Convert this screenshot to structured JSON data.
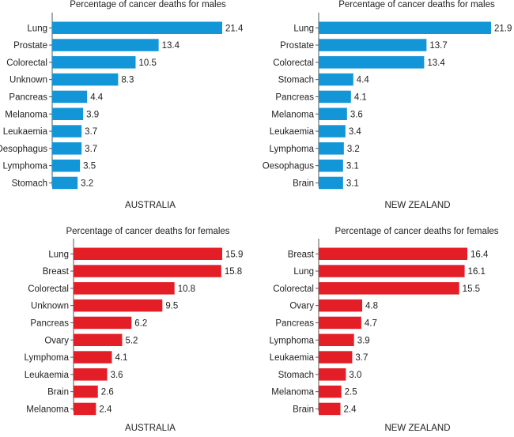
{
  "chart_data": [
    {
      "type": "bar",
      "orientation": "horizontal",
      "title": "Percentage of cancer deaths for males",
      "xlabel": "AUSTRALIA",
      "color": "#1396d8",
      "categories": [
        "Lung",
        "Prostate",
        "Colorectal",
        "Unknown",
        "Pancreas",
        "Melanoma",
        "Leukaemia",
        "Oesophagus",
        "Lymphoma",
        "Stomach"
      ],
      "values": [
        21.4,
        13.4,
        10.5,
        8.3,
        4.4,
        3.9,
        3.7,
        3.7,
        3.5,
        3.2
      ],
      "labels": [
        "21.4",
        "13.4",
        "10.5",
        "8.3",
        "4.4",
        "3.9",
        "3.7",
        "3.7",
        "3.5",
        "3.2"
      ],
      "xlim": [
        0,
        22
      ]
    },
    {
      "type": "bar",
      "orientation": "horizontal",
      "title": "Percentage of cancer deaths for males",
      "xlabel": "NEW ZEALAND",
      "color": "#1396d8",
      "categories": [
        "Lung",
        "Prostate",
        "Colorectal",
        "Stomach",
        "Pancreas",
        "Melanoma",
        "Leukaemia",
        "Lymphoma",
        "Oesophagus",
        "Brain"
      ],
      "values": [
        21.9,
        13.7,
        13.4,
        4.4,
        4.1,
        3.6,
        3.4,
        3.2,
        3.1,
        3.1
      ],
      "labels": [
        "21.9",
        "13.7",
        "13.4",
        "4.4",
        "4.1",
        "3.6",
        "3.4",
        "3.2",
        "3.1",
        "3.1"
      ],
      "xlim": [
        0,
        22
      ]
    },
    {
      "type": "bar",
      "orientation": "horizontal",
      "title": "Percentage of cancer deaths for females",
      "xlabel": "AUSTRALIA",
      "color": "#e41e26",
      "categories": [
        "Lung",
        "Breast",
        "Colorectal",
        "Unknown",
        "Pancreas",
        "Ovary",
        "Lymphoma",
        "Leukaemia",
        "Brain",
        "Melanoma"
      ],
      "values": [
        15.9,
        15.8,
        10.8,
        9.5,
        6.2,
        5.2,
        4.1,
        3.6,
        2.6,
        2.4
      ],
      "labels": [
        "15.9",
        "15.8",
        "10.8",
        "9.5",
        "6.2",
        "5.2",
        "4.1",
        "3.6",
        "2.6",
        "2.4"
      ],
      "xlim": [
        0,
        22
      ]
    },
    {
      "type": "bar",
      "orientation": "horizontal",
      "title": "Percentage of cancer deaths for females",
      "xlabel": "NEW ZEALAND",
      "color": "#e41e26",
      "categories": [
        "Breast",
        "Lung",
        "Colorectal",
        "Ovary",
        "Pancreas",
        "Lymphoma",
        "Leukaemia",
        "Stomach",
        "Melanoma",
        "Brain"
      ],
      "values": [
        16.4,
        16.1,
        15.5,
        4.8,
        4.7,
        3.9,
        3.7,
        3.0,
        2.5,
        2.4
      ],
      "labels": [
        "16.4",
        "16.1",
        "15.5",
        "4.8",
        "4.7",
        "3.9",
        "3.7",
        "3.0",
        "2.5",
        "2.4"
      ],
      "xlim": [
        0,
        22
      ]
    }
  ]
}
